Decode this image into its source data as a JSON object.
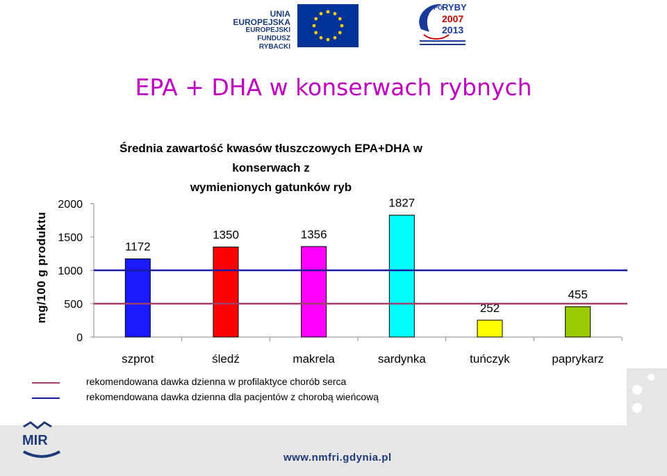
{
  "slide": {
    "title": "EPA + DHA w konserwach rybnych",
    "footer_url": "www.nmfri.gdynia.pl"
  },
  "logos": {
    "eu_line1": "UNIA EUROPEJSKA",
    "eu_line2": "EUROPEJSKI FUNDUSZ",
    "eu_line3": "RYBACKI",
    "po_prefix": "PO",
    "po_name": "RYBY",
    "po_years": "2007\n2013",
    "mir": "MIR"
  },
  "chart_data": {
    "type": "bar",
    "title_line1": "Średnia zawartość kwasów tłuszczowych EPA+DHA w konserwach z",
    "title_line2": "wymienionych gatunków ryb",
    "ylabel": "mg/100 g produktu",
    "xlabel": "",
    "ylim": [
      0,
      2000
    ],
    "yticks": [
      "0",
      "500",
      "1000",
      "1500",
      "2000"
    ],
    "categories": [
      "szprot",
      "śledź",
      "makrela",
      "sardynka",
      "tuńczyk",
      "paprykarz"
    ],
    "values": [
      1172,
      1350,
      1356,
      1827,
      252,
      455
    ],
    "value_labels": [
      "1172",
      "1350",
      "1356",
      "1827",
      "252",
      "455"
    ],
    "colors": [
      "#1a1aff",
      "#ff0000",
      "#ff00ff",
      "#00ffff",
      "#ffff00",
      "#99cc00"
    ],
    "reference_lines": [
      {
        "name": "rekomendowana dawka dzienna w profilaktyce chorób serca",
        "value": 500,
        "color": "#a0406a"
      },
      {
        "name": "rekomendowana dawka dzienna dla pacjentów z chorobą wieńcową",
        "value": 1000,
        "color": "#1a1aa0"
      }
    ]
  }
}
